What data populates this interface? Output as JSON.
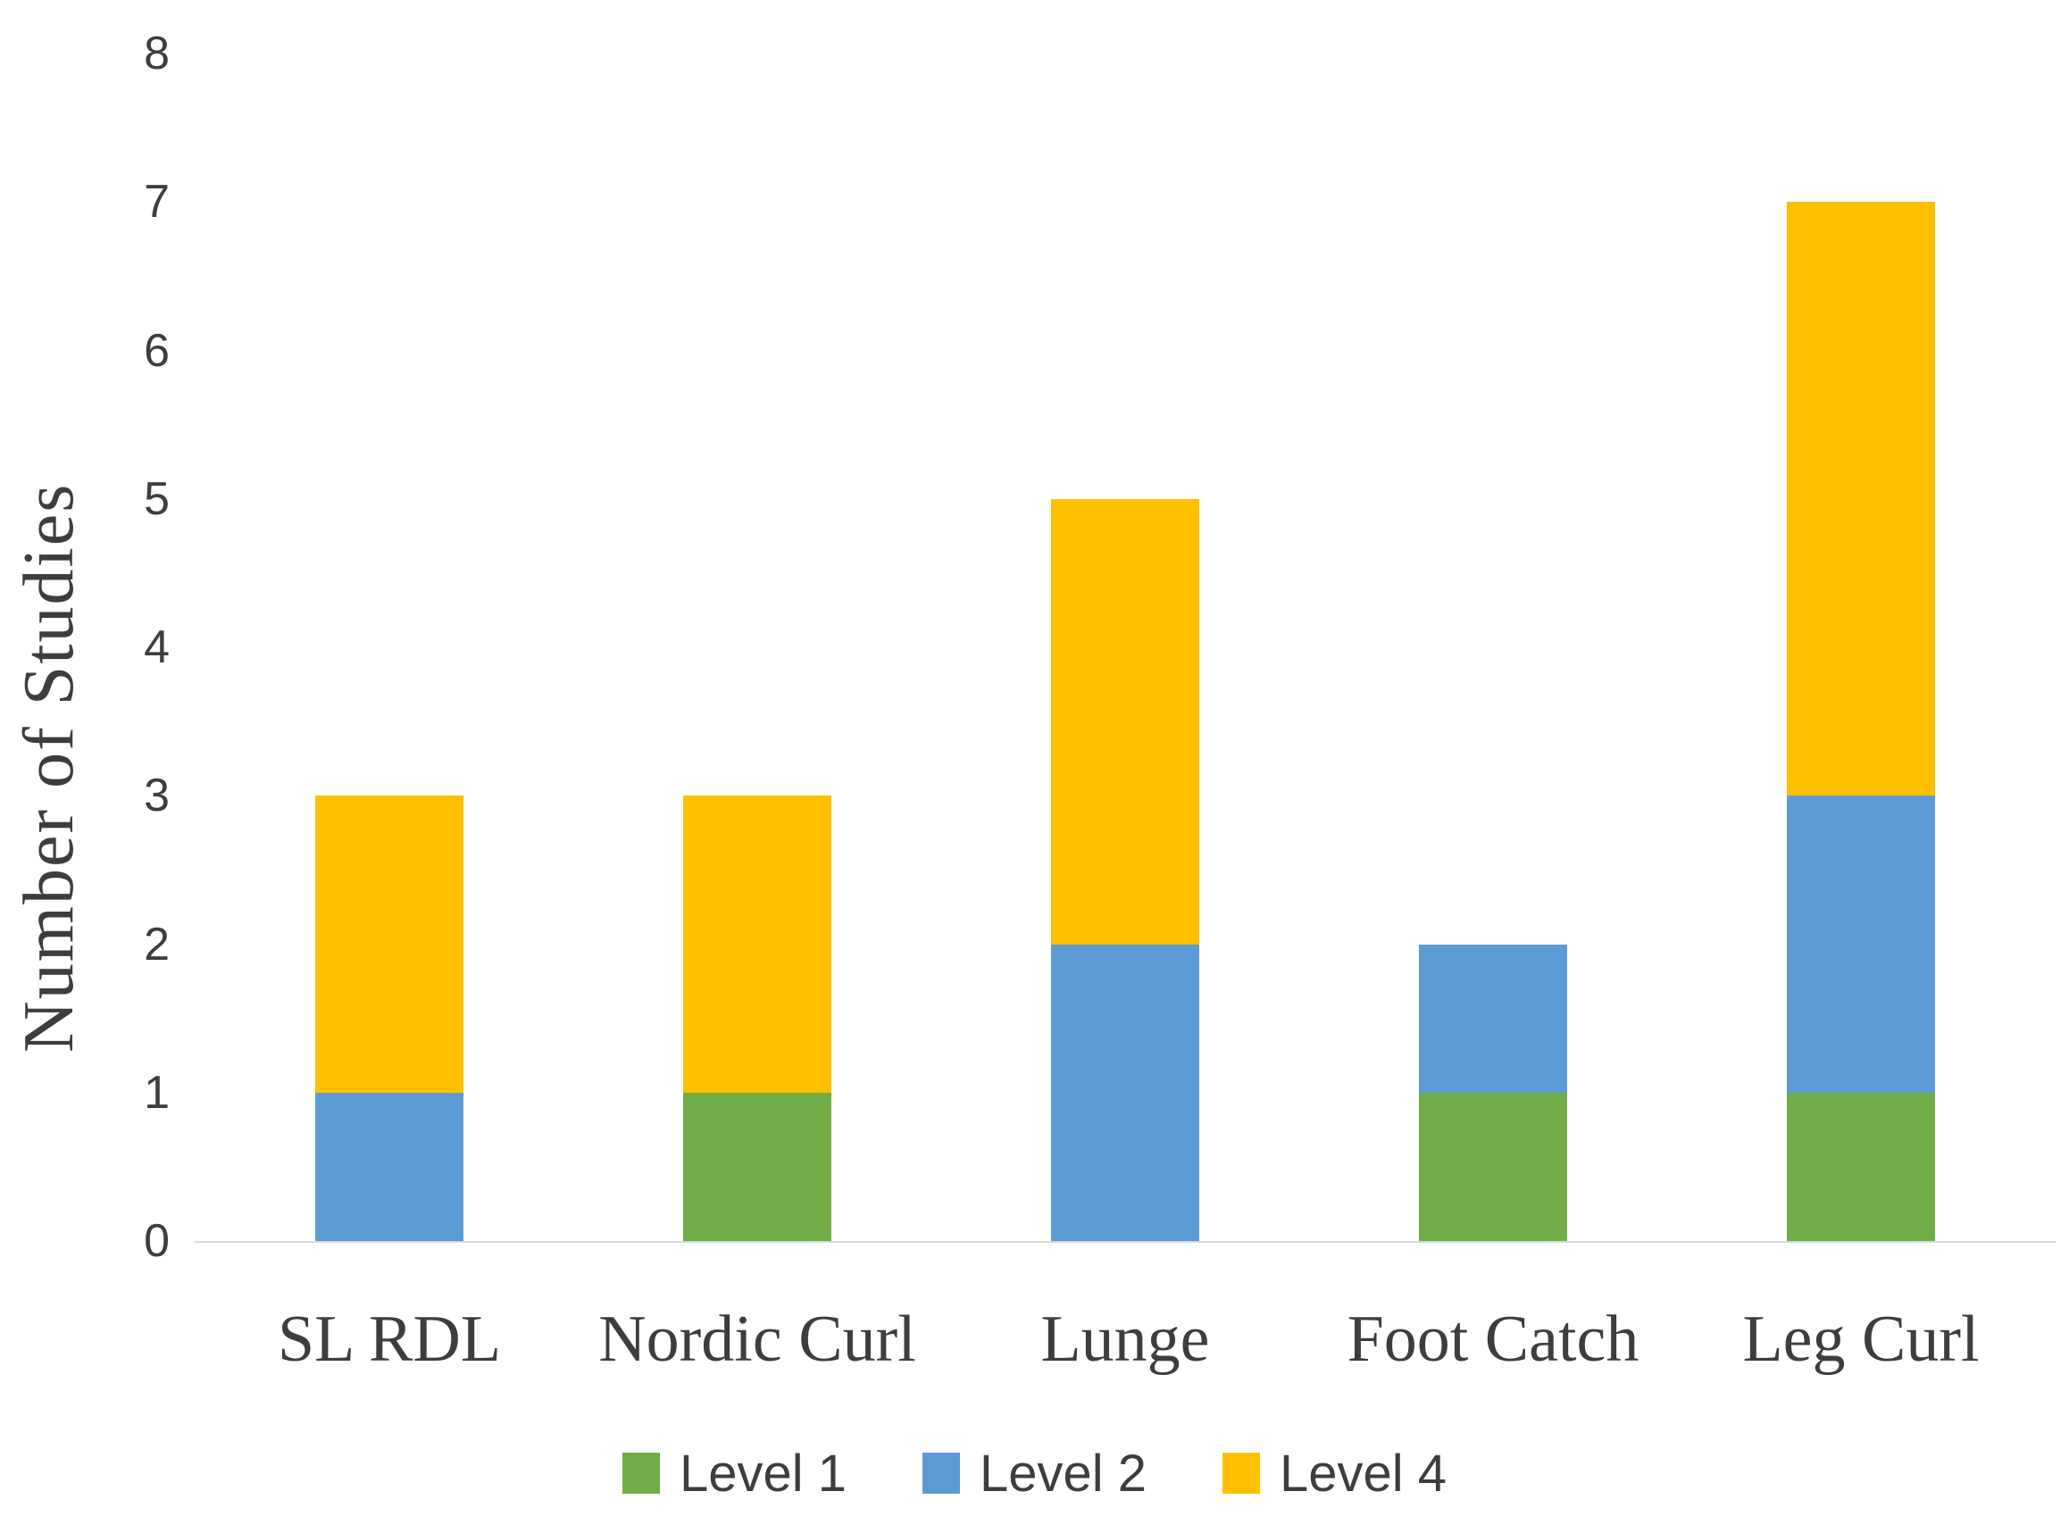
{
  "chart_data": {
    "type": "bar",
    "stacked": true,
    "title": "",
    "categories": [
      "SL RDL",
      "Nordic Curl",
      "Lunge",
      "Foot Catch",
      "Leg Curl"
    ],
    "series": [
      {
        "name": "Level 1",
        "color": "#70AD47",
        "values": [
          0,
          1,
          0,
          1,
          1
        ]
      },
      {
        "name": "Level 2",
        "color": "#5B9BD5",
        "values": [
          1,
          0,
          2,
          1,
          2
        ]
      },
      {
        "name": "Level 4",
        "color": "#FFC000",
        "values": [
          2,
          2,
          3,
          0,
          4
        ]
      }
    ],
    "totals": [
      3,
      3,
      5,
      2,
      7
    ],
    "xlabel": "",
    "ylabel": "Number of Studies",
    "ylim": [
      0,
      8
    ],
    "yticks": [
      0,
      1,
      2,
      3,
      4,
      5,
      6,
      7,
      8
    ],
    "grid": false,
    "legend_position": "bottom"
  },
  "colors": {
    "text": "#404040",
    "axis_line": "#D9D9D9",
    "background": "#FFFFFF",
    "level1_green": "#70AD47",
    "level2_blue": "#5B9BD5",
    "level4_yellow": "#FFC000"
  }
}
